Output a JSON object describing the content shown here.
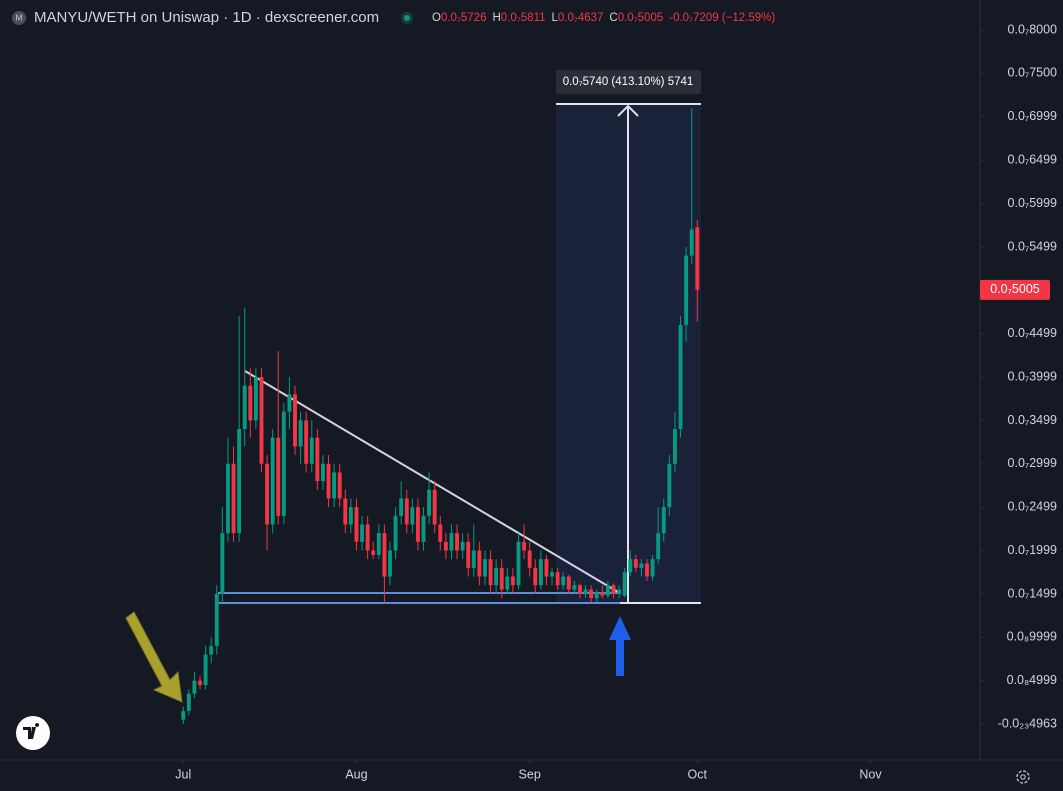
{
  "chart_data": {
    "type": "candlestick",
    "title": "MANYU/WETH on Uniswap · 1D · dexscreener.com",
    "header_ohlc": [
      {
        "key": "O",
        "value": "0.0₇5726"
      },
      {
        "key": "H",
        "value": "0.0₇5811"
      },
      {
        "key": "L",
        "value": "0.0₇4637"
      },
      {
        "key": "C",
        "value": "0.0₇5005"
      }
    ],
    "header_change": "-0.0₇7209 (−12.59%)",
    "measure_label": "0.0₇5740 (413.10%) 5741",
    "up_color": "#089981",
    "down_color": "#f23645",
    "x": [
      0,
      1,
      2,
      3,
      4,
      5,
      6,
      7,
      8,
      9,
      10,
      11,
      12,
      13,
      14,
      15,
      16,
      17,
      18,
      19,
      20,
      21,
      22,
      23,
      24,
      25,
      26,
      27,
      28,
      29,
      30,
      31,
      32,
      33,
      34,
      35,
      36,
      37,
      38,
      39,
      40,
      41,
      42,
      43,
      44,
      45,
      46,
      47,
      48,
      49,
      50,
      51,
      52,
      53,
      54,
      55,
      56,
      57,
      58,
      59,
      60,
      61,
      62,
      63,
      64,
      65,
      66,
      67,
      68,
      69,
      70,
      71,
      72,
      73,
      74,
      75,
      76,
      77,
      78,
      79,
      80,
      81,
      82,
      83,
      84,
      85,
      86,
      87,
      88,
      89,
      90,
      91,
      92
    ],
    "open": [
      5e-10,
      1.5e-09,
      3.5e-09,
      5e-09,
      4.5e-09,
      8e-09,
      9e-09,
      1.5e-08,
      2.2e-08,
      3e-08,
      2.2e-08,
      3.4e-08,
      3.9e-08,
      3.5e-08,
      4e-08,
      3e-08,
      2.3e-08,
      3.3e-08,
      2.4e-08,
      3.6e-08,
      3.8e-08,
      3.2e-08,
      3.5e-08,
      3e-08,
      3.3e-08,
      2.8e-08,
      3e-08,
      2.6e-08,
      2.9e-08,
      2.6e-08,
      2.3e-08,
      2.5e-08,
      2.1e-08,
      2.3e-08,
      2e-08,
      1.95e-08,
      2.2e-08,
      1.7e-08,
      2e-08,
      2.4e-08,
      2.6e-08,
      2.3e-08,
      2.5e-08,
      2.1e-08,
      2.4e-08,
      2.7e-08,
      2.3e-08,
      2.1e-08,
      2e-08,
      2.2e-08,
      2e-08,
      2.1e-08,
      1.8e-08,
      2e-08,
      1.7e-08,
      1.9e-08,
      1.6e-08,
      1.8e-08,
      1.55e-08,
      1.7e-08,
      1.6e-08,
      2.1e-08,
      2e-08,
      1.8e-08,
      1.6e-08,
      1.9e-08,
      1.7e-08,
      1.75e-08,
      1.6e-08,
      1.7e-08,
      1.55e-08,
      1.6e-08,
      1.5e-08,
      1.55e-08,
      1.45e-08,
      1.52e-08,
      1.48e-08,
      1.6e-08,
      1.5e-08,
      1.48e-08,
      1.75e-08,
      1.9e-08,
      1.8e-08,
      1.85e-08,
      1.7e-08,
      1.9e-08,
      2.2e-08,
      2.5e-08,
      3e-08,
      3.4e-08,
      4.6e-08,
      5.4e-08,
      5.726e-08
    ],
    "high": [
      2e-09,
      4e-09,
      6e-09,
      5.5e-09,
      9e-09,
      1e-08,
      1.6e-08,
      2.5e-08,
      3.3e-08,
      3.2e-08,
      4.7e-08,
      4.8e-08,
      4.1e-08,
      4.1e-08,
      4.1e-08,
      3.1e-08,
      3.4e-08,
      4.3e-08,
      3.7e-08,
      4e-08,
      3.9e-08,
      3.6e-08,
      3.6e-08,
      3.5e-08,
      3.4e-08,
      3.1e-08,
      3.1e-08,
      3e-08,
      3e-08,
      2.7e-08,
      2.6e-08,
      2.6e-08,
      2.4e-08,
      2.4e-08,
      2.1e-08,
      2.3e-08,
      2.3e-08,
      2.1e-08,
      2.5e-08,
      2.8e-08,
      2.7e-08,
      2.6e-08,
      2.6e-08,
      2.5e-08,
      2.9e-08,
      2.8e-08,
      2.4e-08,
      2.2e-08,
      2.3e-08,
      2.3e-08,
      2.2e-08,
      2.2e-08,
      2.3e-08,
      2.1e-08,
      2e-08,
      2e-08,
      1.9e-08,
      1.9e-08,
      1.8e-08,
      1.8e-08,
      2.2e-08,
      2.3e-08,
      2.1e-08,
      1.9e-08,
      2e-08,
      1.95e-08,
      1.8e-08,
      1.8e-08,
      1.75e-08,
      1.72e-08,
      1.65e-08,
      1.62e-08,
      1.6e-08,
      1.6e-08,
      1.55e-08,
      1.6e-08,
      1.65e-08,
      1.62e-08,
      1.6e-08,
      1.8e-08,
      2e-08,
      1.95e-08,
      1.9e-08,
      1.9e-08,
      1.95e-08,
      2.5e-08,
      2.6e-08,
      3.1e-08,
      3.6e-08,
      4.7e-08,
      5.5e-08,
      7.1e-08,
      5.811e-08
    ],
    "low": [
      0.0,
      1e-09,
      3e-09,
      4e-09,
      4e-09,
      7e-09,
      8e-09,
      1.4e-08,
      2.1e-08,
      2.1e-08,
      2.1e-08,
      3.2e-08,
      3.3e-08,
      3.4e-08,
      2.9e-08,
      2e-08,
      2.2e-08,
      2.3e-08,
      2.3e-08,
      3.4e-08,
      3.1e-08,
      3e-08,
      2.9e-08,
      2.9e-08,
      2.7e-08,
      2.7e-08,
      2.5e-08,
      2.5e-08,
      2.5e-08,
      2.2e-08,
      2.2e-08,
      2e-08,
      2e-08,
      1.9e-08,
      1.9e-08,
      1.9e-08,
      1.4e-08,
      1.6e-08,
      1.9e-08,
      2.3e-08,
      2.2e-08,
      2.2e-08,
      2e-08,
      2e-08,
      2.3e-08,
      2.2e-08,
      2e-08,
      1.9e-08,
      1.9e-08,
      1.9e-08,
      1.9e-08,
      1.7e-08,
      1.7e-08,
      1.6e-08,
      1.6e-08,
      1.5e-08,
      1.5e-08,
      1.45e-08,
      1.5e-08,
      1.5e-08,
      1.55e-08,
      1.9e-08,
      1.7e-08,
      1.5e-08,
      1.55e-08,
      1.6e-08,
      1.6e-08,
      1.55e-08,
      1.55e-08,
      1.5e-08,
      1.5e-08,
      1.45e-08,
      1.45e-08,
      1.4e-08,
      1.4e-08,
      1.45e-08,
      1.45e-08,
      1.45e-08,
      1.45e-08,
      1.46e-08,
      1.7e-08,
      1.75e-08,
      1.7e-08,
      1.65e-08,
      1.65e-08,
      1.85e-08,
      2.1e-08,
      2.4e-08,
      2.9e-08,
      3.3e-08,
      4.4e-08,
      5.3e-08,
      4.637e-08
    ],
    "close": [
      1.5e-09,
      3.5e-09,
      5e-09,
      4.5e-09,
      8e-09,
      9e-09,
      1.5e-08,
      2.2e-08,
      3e-08,
      2.2e-08,
      3.4e-08,
      3.9e-08,
      3.5e-08,
      4e-08,
      3e-08,
      2.3e-08,
      3.3e-08,
      2.4e-08,
      3.6e-08,
      3.8e-08,
      3.2e-08,
      3.5e-08,
      3e-08,
      3.3e-08,
      2.8e-08,
      3e-08,
      2.6e-08,
      2.9e-08,
      2.6e-08,
      2.3e-08,
      2.5e-08,
      2.1e-08,
      2.3e-08,
      2e-08,
      1.95e-08,
      2.2e-08,
      1.7e-08,
      2e-08,
      2.4e-08,
      2.6e-08,
      2.3e-08,
      2.5e-08,
      2.1e-08,
      2.4e-08,
      2.7e-08,
      2.3e-08,
      2.1e-08,
      2e-08,
      2.2e-08,
      2e-08,
      2.1e-08,
      1.8e-08,
      2e-08,
      1.7e-08,
      1.9e-08,
      1.6e-08,
      1.8e-08,
      1.55e-08,
      1.7e-08,
      1.6e-08,
      2.1e-08,
      2e-08,
      1.8e-08,
      1.6e-08,
      1.9e-08,
      1.7e-08,
      1.75e-08,
      1.6e-08,
      1.7e-08,
      1.55e-08,
      1.6e-08,
      1.5e-08,
      1.55e-08,
      1.45e-08,
      1.52e-08,
      1.48e-08,
      1.6e-08,
      1.5e-08,
      1.55e-08,
      1.75e-08,
      1.9e-08,
      1.8e-08,
      1.85e-08,
      1.7e-08,
      1.9e-08,
      2.2e-08,
      2.5e-08,
      3e-08,
      3.4e-08,
      4.6e-08,
      5.4e-08,
      5.7e-08,
      5.005e-08
    ],
    "xlim": [
      -32.8,
      142.6
    ],
    "xticks": [
      {
        "value": 0,
        "label": "Jul"
      },
      {
        "value": 31,
        "label": "Aug"
      },
      {
        "value": 62,
        "label": "Sep"
      },
      {
        "value": 92,
        "label": "Oct"
      },
      {
        "value": 123,
        "label": "Nov"
      }
    ],
    "ylim": [
      -4.15e-09,
      8.346e-08
    ],
    "yticks": [
      {
        "value": 8e-08,
        "label": "0.0₇8000"
      },
      {
        "value": 7.5e-08,
        "label": "0.0₇7500"
      },
      {
        "value": 6.999e-08,
        "label": "0.0₇6999"
      },
      {
        "value": 6.499e-08,
        "label": "0.0₇6499"
      },
      {
        "value": 5.999e-08,
        "label": "0.0₇5999"
      },
      {
        "value": 5.499e-08,
        "label": "0.0₇5499"
      },
      {
        "value": 4.499e-08,
        "label": "0.0₇4499"
      },
      {
        "value": 3.999e-08,
        "label": "0.0₇3999"
      },
      {
        "value": 3.499e-08,
        "label": "0.0₇3499"
      },
      {
        "value": 2.999e-08,
        "label": "0.0₇2999"
      },
      {
        "value": 2.499e-08,
        "label": "0.0₇2499"
      },
      {
        "value": 1.999e-08,
        "label": "0.0₇1999"
      },
      {
        "value": 1.499e-08,
        "label": "0.0₇1499"
      },
      {
        "value": 9.999e-09,
        "label": "0.0₈9999"
      },
      {
        "value": 4.999e-09,
        "label": "0.0₈4999"
      },
      {
        "value": -4.963e-24,
        "label": "-0.0₂₃4963"
      }
    ],
    "last_price": {
      "value": 5.005e-08,
      "label": "0.0₇5005"
    },
    "grid": false
  }
}
